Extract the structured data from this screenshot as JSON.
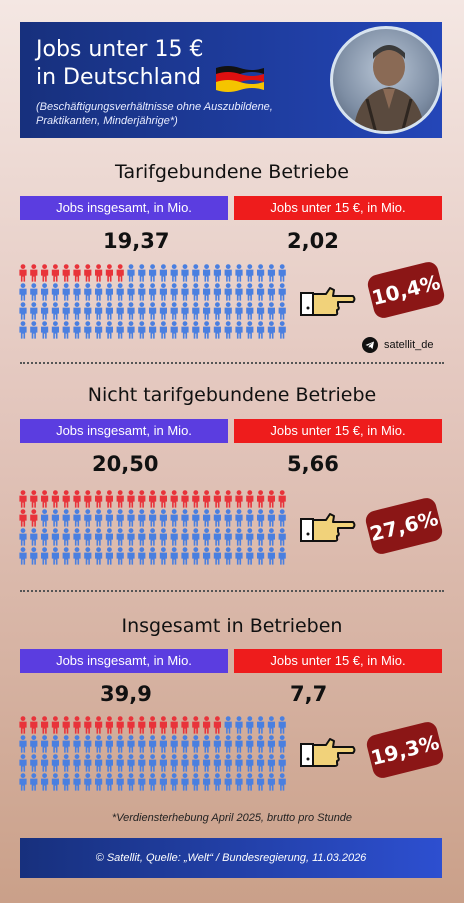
{
  "header": {
    "title_line1": "Jobs unter 15 €",
    "title_line2": "in Deutschland",
    "subtitle": "(Beschäftigungsverhältnisse ohne Auszubildene, Praktikanten, Minderjährige*)"
  },
  "labels": {
    "total": "Jobs insgesamt, in Mio.",
    "under15": "Jobs unter 15 €, in Mio."
  },
  "sections": [
    {
      "title": "Tarifgebundene Betriebe",
      "total_value": "19,37",
      "under15_value": "2,02",
      "percent": "10,4%",
      "red_figures": 10
    },
    {
      "title": "Nicht tarifgebundene Betriebe",
      "total_value": "20,50",
      "under15_value": "5,66",
      "percent": "27,6%",
      "red_figures": 27
    },
    {
      "title": "Insgesamt in Betrieben",
      "total_value": "39,9",
      "under15_value": "7,7",
      "percent": "19,3%",
      "red_figures": 19
    }
  ],
  "social": {
    "handle": "satellit_de",
    "icon": "telegram-icon"
  },
  "footnote": "*Verdiensterhebung April 2025, brutto pro Stunde",
  "footer": "© Satellit, Quelle: „Welt“ / Bundesregierung, 11.03.2026",
  "colors": {
    "blue_label": "#5b3de0",
    "red_label": "#ee1c1c",
    "figure_blue": "#4a7fe0",
    "figure_red": "#e8333a",
    "percent_badge": "#8b1616",
    "header_bg": "#1f3ea6"
  }
}
